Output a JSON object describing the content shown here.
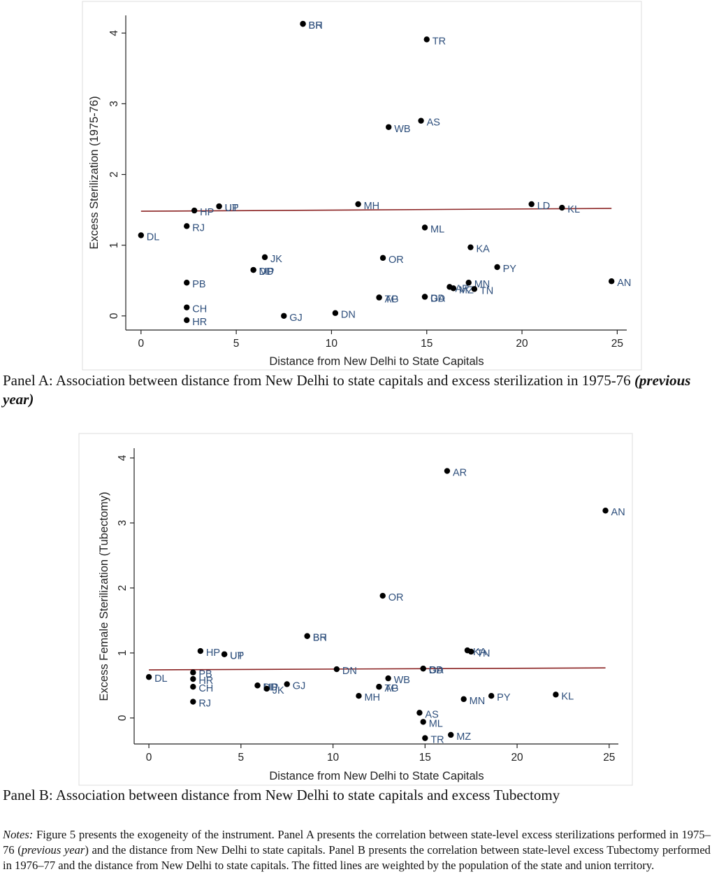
{
  "chart_data": [
    {
      "type": "scatter",
      "xlabel": "Distance from New Delhi to State Capitals",
      "ylabel": "Excess Sterilization (1975-76)",
      "xlim": [
        -0.8,
        25.5
      ],
      "ylim": [
        -0.2,
        4.25
      ],
      "xticks": [
        0,
        5,
        10,
        15,
        20,
        25
      ],
      "yticks": [
        0,
        1,
        2,
        3,
        4
      ],
      "points": [
        {
          "label": "DL",
          "x": 0.0,
          "y": 1.14
        },
        {
          "label": "HP",
          "x": 2.8,
          "y": 1.49
        },
        {
          "label": "RJ",
          "x": 2.4,
          "y": 1.27
        },
        {
          "label": "PB",
          "x": 2.4,
          "y": 0.47
        },
        {
          "label": "CH",
          "x": 2.4,
          "y": 0.12
        },
        {
          "label": "HR",
          "x": 2.4,
          "y": -0.06
        },
        {
          "label": "UP",
          "x": 4.1,
          "y": 1.55
        },
        {
          "label": "UT",
          "x": 4.1,
          "y": 1.55
        },
        {
          "label": "JK",
          "x": 6.5,
          "y": 0.83
        },
        {
          "label": "DD",
          "x": 5.9,
          "y": 0.65
        },
        {
          "label": "MP",
          "x": 5.9,
          "y": 0.65
        },
        {
          "label": "GJ",
          "x": 7.5,
          "y": 0.0
        },
        {
          "label": "BH",
          "x": 8.5,
          "y": 4.13
        },
        {
          "label": "BR",
          "x": 8.5,
          "y": 4.13
        },
        {
          "label": "DN",
          "x": 10.2,
          "y": 0.04
        },
        {
          "label": "MH",
          "x": 11.4,
          "y": 1.58
        },
        {
          "label": "OR",
          "x": 12.7,
          "y": 0.82
        },
        {
          "label": "TG",
          "x": 12.5,
          "y": 0.26
        },
        {
          "label": "AP",
          "x": 12.5,
          "y": 0.26
        },
        {
          "label": "WB",
          "x": 13.0,
          "y": 2.67
        },
        {
          "label": "AS",
          "x": 14.7,
          "y": 2.76
        },
        {
          "label": "TR",
          "x": 15.0,
          "y": 3.91
        },
        {
          "label": "ML",
          "x": 14.9,
          "y": 1.25
        },
        {
          "label": "GA",
          "x": 14.9,
          "y": 0.27
        },
        {
          "label": "DD",
          "x": 14.9,
          "y": 0.27
        },
        {
          "label": "AR",
          "x": 16.2,
          "y": 0.41
        },
        {
          "label": "MZ",
          "x": 16.4,
          "y": 0.39
        },
        {
          "label": "MN",
          "x": 17.2,
          "y": 0.47
        },
        {
          "label": "TN",
          "x": 17.5,
          "y": 0.38
        },
        {
          "label": "KA",
          "x": 17.3,
          "y": 0.97
        },
        {
          "label": "PY",
          "x": 18.7,
          "y": 0.69
        },
        {
          "label": "LD",
          "x": 20.5,
          "y": 1.58
        },
        {
          "label": "KL",
          "x": 22.1,
          "y": 1.53
        },
        {
          "label": "AN",
          "x": 24.7,
          "y": 0.49
        }
      ],
      "fit_line": {
        "x": [
          0,
          24.7
        ],
        "y": [
          1.48,
          1.52
        ],
        "color": "#8b2323"
      }
    },
    {
      "type": "scatter",
      "xlabel": "Distance from New Delhi to State Capitals",
      "ylabel": "Excess Female Sterilization (Tubectomy)",
      "xlim": [
        -0.8,
        25.5
      ],
      "ylim": [
        -0.4,
        4.15
      ],
      "xticks": [
        0,
        5,
        10,
        15,
        20,
        25
      ],
      "yticks": [
        0,
        1,
        2,
        3,
        4
      ],
      "points": [
        {
          "label": "DL",
          "x": 0.0,
          "y": 0.63
        },
        {
          "label": "HP",
          "x": 2.8,
          "y": 1.03
        },
        {
          "label": "PB",
          "x": 2.4,
          "y": 0.7
        },
        {
          "label": "HR",
          "x": 2.4,
          "y": 0.6
        },
        {
          "label": "CH",
          "x": 2.4,
          "y": 0.48
        },
        {
          "label": "RJ",
          "x": 2.4,
          "y": 0.25
        },
        {
          "label": "UP",
          "x": 4.1,
          "y": 0.98
        },
        {
          "label": "UT",
          "x": 4.1,
          "y": 0.98
        },
        {
          "label": "DD",
          "x": 5.9,
          "y": 0.5
        },
        {
          "label": "MP",
          "x": 5.9,
          "y": 0.5
        },
        {
          "label": "JK",
          "x": 6.4,
          "y": 0.45
        },
        {
          "label": "GJ",
          "x": 7.5,
          "y": 0.52
        },
        {
          "label": "BH",
          "x": 8.6,
          "y": 1.26
        },
        {
          "label": "BR",
          "x": 8.6,
          "y": 1.26
        },
        {
          "label": "DN",
          "x": 10.2,
          "y": 0.75
        },
        {
          "label": "MH",
          "x": 11.4,
          "y": 0.34
        },
        {
          "label": "TG",
          "x": 12.5,
          "y": 0.48
        },
        {
          "label": "AP",
          "x": 12.5,
          "y": 0.48
        },
        {
          "label": "WB",
          "x": 13.0,
          "y": 0.61
        },
        {
          "label": "OR",
          "x": 12.7,
          "y": 1.88
        },
        {
          "label": "AS",
          "x": 14.7,
          "y": 0.08
        },
        {
          "label": "ML",
          "x": 14.9,
          "y": -0.06
        },
        {
          "label": "TR",
          "x": 15.0,
          "y": -0.31
        },
        {
          "label": "GA",
          "x": 14.9,
          "y": 0.76
        },
        {
          "label": "DD",
          "x": 14.9,
          "y": 0.76
        },
        {
          "label": "AR",
          "x": 16.2,
          "y": 3.8
        },
        {
          "label": "MZ",
          "x": 16.4,
          "y": -0.26
        },
        {
          "label": "KA",
          "x": 17.3,
          "y": 1.04
        },
        {
          "label": "TN",
          "x": 17.5,
          "y": 1.02
        },
        {
          "label": "MN",
          "x": 17.1,
          "y": 0.29
        },
        {
          "label": "PY",
          "x": 18.6,
          "y": 0.34
        },
        {
          "label": "KL",
          "x": 22.1,
          "y": 0.36
        },
        {
          "label": "AN",
          "x": 24.8,
          "y": 3.19
        }
      ],
      "fit_line": {
        "x": [
          0,
          24.8
        ],
        "y": [
          0.74,
          0.77
        ],
        "color": "#8b2323"
      }
    }
  ],
  "captions": {
    "panel_a_main": "Panel A: Association between distance from New Delhi to state capitals and excess sterilization in 1975-76 ",
    "panel_a_emph": "(previous year)",
    "panel_b": "Panel B: Association between distance from New Delhi to state capitals and excess Tubectomy"
  },
  "notes": {
    "lead": "Notes:",
    "part1": " Figure 5 presents the exogeneity of the instrument. Panel A presents the correlation between state-level excess sterilizations performed in 1975–76 (",
    "emph": "previous year",
    "part2": ") and the distance from New Delhi to state capitals. Panel B presents the correlation between state-level excess Tubectomy performed in 1976–77 and the distance from New Delhi to state capitals. The fitted lines are weighted by the population of the state and union territory."
  },
  "colors": {
    "marker": "#000000",
    "label": "#2e4f7c",
    "fit": "#8b2323"
  }
}
